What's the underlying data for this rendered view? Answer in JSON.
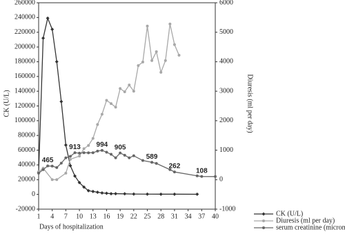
{
  "chart_data": {
    "type": "line",
    "x_label": "Days of hospitalization",
    "y_label": "CK (U/L)",
    "y2_label": "Diuresis (ml per day)",
    "xlim": [
      1,
      40
    ],
    "xticks": [
      1,
      4,
      7,
      10,
      13,
      16,
      19,
      22,
      25,
      28,
      31,
      34,
      37,
      40
    ],
    "ylim": [
      -20000,
      260000
    ],
    "yticks": [
      -20000,
      0,
      20000,
      40000,
      60000,
      80000,
      100000,
      120000,
      140000,
      160000,
      180000,
      200000,
      220000,
      240000,
      260000
    ],
    "y2lim": [
      -1000,
      6000
    ],
    "y2ticks": [
      -1000,
      0,
      1000,
      2000,
      3000,
      4000,
      5000,
      6000
    ],
    "legend": "bottom-right",
    "series": [
      {
        "name": "CK (U/L)",
        "color": "#333333",
        "marker": "diamond",
        "x": [
          1,
          2,
          3,
          4,
          5,
          6,
          7,
          8,
          9,
          10,
          11,
          12,
          13,
          14,
          15,
          16,
          17,
          18,
          20,
          22,
          25,
          28,
          31,
          36
        ],
        "values": [
          30000,
          212000,
          239000,
          224000,
          180000,
          126000,
          67000,
          39000,
          25000,
          16000,
          10000,
          5000,
          4000,
          3000,
          2000,
          1500,
          1000,
          1000,
          800,
          500,
          400,
          300,
          300,
          200
        ]
      },
      {
        "name": "Diuresis (ml per day)",
        "color": "#a8a8a8",
        "marker": "circle",
        "axis": "y2",
        "x": [
          1,
          2,
          4,
          5,
          7,
          8,
          10,
          11,
          12,
          13,
          14,
          15,
          16,
          17,
          18,
          19,
          20,
          21,
          22,
          23,
          24,
          25,
          26,
          27,
          28,
          29,
          30,
          31,
          32
        ],
        "values": [
          270,
          390,
          0,
          0,
          220,
          690,
          800,
          1050,
          1160,
          1400,
          1870,
          2220,
          2690,
          2580,
          2460,
          3090,
          2980,
          3210,
          3000,
          3870,
          3990,
          5210,
          4040,
          4340,
          3640,
          4040,
          5280,
          4580,
          4220
        ]
      },
      {
        "name": "serum creatinine (micromol/L)",
        "color": "#666666",
        "marker": "circle",
        "axis": "y2",
        "x": [
          1,
          2,
          3,
          4,
          5,
          6,
          7,
          8,
          9,
          10,
          11,
          12,
          13,
          14,
          15,
          16,
          17,
          18,
          19,
          20,
          21,
          22,
          24,
          26,
          27,
          30,
          31,
          36,
          37,
          40
        ],
        "values": [
          220,
          340,
          465,
          460,
          410,
          560,
          740,
          790,
          913,
          900,
          913,
          910,
          915,
          970,
          994,
          930,
          860,
          740,
          905,
          830,
          740,
          810,
          650,
          589,
          550,
          340,
          262,
          130,
          108,
          105
        ],
        "value_labels": [
          null,
          null,
          465,
          null,
          null,
          null,
          null,
          null,
          913,
          null,
          null,
          null,
          null,
          null,
          994,
          null,
          null,
          null,
          905,
          null,
          null,
          null,
          null,
          589,
          null,
          null,
          262,
          null,
          108,
          null
        ]
      }
    ]
  }
}
